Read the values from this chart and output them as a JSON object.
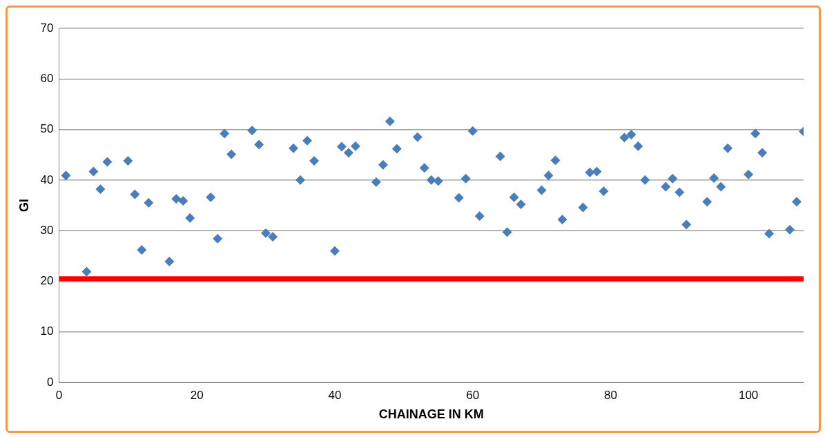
{
  "chart_data": {
    "type": "scatter",
    "xlabel": "CHAINAGE IN KM",
    "ylabel": "GI",
    "x": [
      1,
      4,
      5,
      6,
      7,
      10,
      11,
      12,
      13,
      16,
      17,
      18,
      19,
      22,
      23,
      24,
      25,
      28,
      29,
      30,
      31,
      34,
      35,
      36,
      37,
      40,
      41,
      42,
      43,
      46,
      47,
      48,
      49,
      52,
      53,
      54,
      55,
      58,
      59,
      60,
      61,
      64,
      65,
      66,
      67,
      70,
      71,
      72,
      73,
      76,
      77,
      78,
      79,
      82,
      83,
      84,
      85,
      88,
      89,
      90,
      91,
      94,
      95,
      96,
      97,
      100,
      101,
      102,
      103,
      106,
      107,
      108
    ],
    "series": [
      {
        "color": "#4a7ebb",
        "values": [
          40.9,
          21.9,
          41.7,
          38.2,
          43.6,
          43.8,
          37.2,
          26.2,
          35.5,
          23.9,
          36.3,
          35.9,
          32.5,
          36.6,
          28.4,
          49.2,
          45.1,
          49.8,
          47.0,
          29.5,
          28.8,
          46.3,
          40.0,
          47.8,
          43.8,
          26.0,
          46.6,
          45.4,
          46.7,
          39.6,
          43.0,
          51.6,
          46.2,
          48.5,
          42.4,
          40.0,
          39.8,
          36.5,
          40.3,
          49.7,
          32.9,
          44.7,
          29.7,
          36.6,
          35.2,
          38.0,
          40.9,
          43.9,
          32.2,
          34.6,
          41.5,
          41.7,
          37.8,
          48.4,
          49.0,
          46.7,
          40.0,
          38.7,
          40.3,
          37.6,
          31.2,
          35.7,
          40.4,
          38.7,
          46.3,
          41.1,
          49.2,
          45.4,
          29.4,
          30.2,
          35.7,
          49.6
        ]
      }
    ],
    "xlim": [
      0,
      108
    ],
    "xticks": [
      0,
      20,
      40,
      60,
      80,
      100
    ],
    "ylim": [
      0,
      70
    ],
    "yticks": [
      0,
      10,
      20,
      30,
      40,
      50,
      60,
      70
    ],
    "ref_lines": [
      {
        "axis": "y",
        "value": 20.5,
        "color": "#ff0000"
      }
    ],
    "grid": "y",
    "legend": false,
    "marker": "diamond"
  }
}
